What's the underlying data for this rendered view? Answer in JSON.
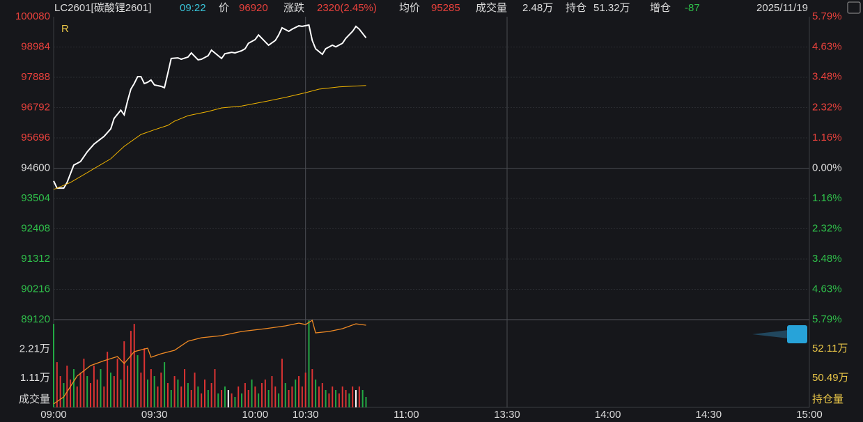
{
  "header": {
    "items": [
      {
        "text": "LC2601[碳酸锂2601]",
        "color": "#dcdcdc"
      },
      {
        "text": "09:22",
        "color": "#39c4d8"
      },
      {
        "text": "价",
        "color": "#dcdcdc"
      },
      {
        "text": "96920",
        "color": "#e8413c"
      },
      {
        "text": "涨跌",
        "color": "#dcdcdc"
      },
      {
        "text": "2320(2.45%)",
        "color": "#e8413c"
      },
      {
        "text": "均价",
        "color": "#dcdcdc"
      },
      {
        "text": "95285",
        "color": "#e8413c"
      },
      {
        "text": "成交量",
        "color": "#dcdcdc"
      },
      {
        "text": "2.48万",
        "color": "#dcdcdc"
      },
      {
        "text": "持仓",
        "color": "#dcdcdc"
      },
      {
        "text": "51.32万",
        "color": "#dcdcdc"
      },
      {
        "text": "增仓",
        "color": "#dcdcdc"
      },
      {
        "text": "-87",
        "color": "#2fbf4a"
      }
    ],
    "date": "2025/11/19"
  },
  "chart_data": [
    {
      "type": "line",
      "annotation": "R",
      "up_color": "#e8413c",
      "down_color": "#2fbf4a",
      "flat_color": "#dcdcdc",
      "xlim": [
        0,
        225
      ],
      "xticks": [
        {
          "value": 0,
          "label": "09:00"
        },
        {
          "value": 30,
          "label": "09:30"
        },
        {
          "value": 60,
          "label": "10:00"
        },
        {
          "value": 75,
          "label": "10:30"
        },
        {
          "value": 105,
          "label": "11:00"
        },
        {
          "value": 135,
          "label": "13:30"
        },
        {
          "value": 165,
          "label": "14:00"
        },
        {
          "value": 195,
          "label": "14:30"
        },
        {
          "value": 225,
          "label": "15:00"
        }
      ],
      "ylim": [
        89120,
        100080
      ],
      "yticks": [
        100080,
        98984,
        97888,
        96792,
        95696,
        94600,
        93504,
        92408,
        91312,
        90216,
        89120
      ],
      "y2lim": [
        -5.79,
        5.79
      ],
      "y2ticks": [
        {
          "value": 5.79,
          "label": "5.79%"
        },
        {
          "value": 4.63,
          "label": "4.63%"
        },
        {
          "value": 3.48,
          "label": "3.48%"
        },
        {
          "value": 2.32,
          "label": "2.32%"
        },
        {
          "value": 1.16,
          "label": "1.16%"
        },
        {
          "value": 0,
          "label": "0.00%"
        },
        {
          "value": -1.16,
          "label": "1.16%"
        },
        {
          "value": -2.32,
          "label": "2.32%"
        },
        {
          "value": -3.48,
          "label": "3.48%"
        },
        {
          "value": -4.63,
          "label": "4.63%"
        },
        {
          "value": -5.79,
          "label": "5.79%"
        }
      ],
      "series": [
        {
          "color": "#ffffff",
          "x": [
            0,
            1,
            3,
            4,
            6,
            8,
            10,
            12,
            15,
            17,
            18,
            20,
            21,
            22,
            23,
            24,
            25,
            26,
            27,
            28,
            29,
            30,
            32,
            33,
            34,
            35,
            37,
            38,
            40,
            41,
            43,
            44,
            46,
            47,
            49,
            50,
            51,
            53,
            54,
            56,
            57,
            58,
            60,
            61,
            63,
            64,
            66,
            67,
            68,
            70,
            71,
            73,
            74,
            76,
            77,
            78,
            80,
            81,
            83,
            84,
            86,
            87,
            89,
            90,
            91,
            93
          ],
          "values": [
            94140,
            93880,
            93880,
            94080,
            94710,
            94840,
            95190,
            95470,
            95750,
            96020,
            96400,
            96700,
            96530,
            97030,
            97460,
            97660,
            97910,
            97910,
            97660,
            97710,
            97790,
            97610,
            97560,
            97510,
            98040,
            98570,
            98590,
            98540,
            98620,
            98770,
            98520,
            98540,
            98670,
            98870,
            98670,
            98570,
            98740,
            98790,
            98770,
            98850,
            98920,
            99120,
            99250,
            99420,
            99170,
            99050,
            99220,
            99420,
            99680,
            99550,
            99630,
            99750,
            99730,
            99780,
            99220,
            98920,
            98720,
            98920,
            99050,
            98990,
            99120,
            99300,
            99550,
            99730,
            99630,
            99320
          ]
        },
        {
          "color": "#f0b400",
          "x": [
            0,
            5,
            11,
            17,
            21,
            26,
            30,
            34,
            36,
            40,
            46,
            50,
            56,
            63,
            69,
            75,
            79,
            85,
            93
          ],
          "values": [
            93830,
            94080,
            94510,
            94940,
            95390,
            95820,
            95990,
            96150,
            96300,
            96500,
            96650,
            96780,
            96850,
            97010,
            97160,
            97330,
            97460,
            97540,
            97590
          ]
        }
      ]
    },
    {
      "type": "bar",
      "ylabel": "成交量",
      "y2label": "持仓量",
      "xlim": [
        0,
        225
      ],
      "ylim": [
        0,
        33300
      ],
      "yticks": [
        {
          "value": 11100,
          "label": "1.11万"
        },
        {
          "value": 22100,
          "label": "2.21万"
        }
      ],
      "y2lim": [
        488700,
        537300
      ],
      "y2ticks": [
        {
          "value": 504900,
          "label": "50.49万"
        },
        {
          "value": 521100,
          "label": "52.11万"
        }
      ],
      "x": [
        0,
        1,
        2,
        3,
        4,
        5,
        6,
        7,
        8,
        9,
        10,
        11,
        12,
        13,
        14,
        15,
        16,
        17,
        18,
        19,
        20,
        21,
        22,
        23,
        24,
        25,
        26,
        27,
        28,
        29,
        30,
        31,
        32,
        33,
        34,
        35,
        36,
        37,
        38,
        39,
        40,
        41,
        42,
        43,
        44,
        45,
        46,
        47,
        48,
        49,
        50,
        51,
        52,
        53,
        54,
        55,
        56,
        57,
        58,
        59,
        60,
        61,
        62,
        63,
        64,
        65,
        66,
        67,
        68,
        69,
        70,
        71,
        72,
        73,
        74,
        75,
        76,
        77,
        78,
        79,
        80,
        81,
        82,
        83,
        84,
        85,
        86,
        87,
        88,
        89,
        90,
        91,
        92,
        93
      ],
      "values": [
        31680,
        17160,
        11880,
        9240,
        15840,
        10560,
        14520,
        7920,
        13200,
        18480,
        11880,
        9240,
        15840,
        10560,
        14520,
        7920,
        21120,
        13200,
        11880,
        18480,
        10560,
        25080,
        15840,
        29040,
        31680,
        19800,
        13200,
        22440,
        10560,
        14520,
        11880,
        7920,
        13200,
        17160,
        9240,
        6600,
        11880,
        10560,
        7920,
        14520,
        9240,
        6600,
        13200,
        7920,
        5280,
        10560,
        6600,
        9240,
        14520,
        5280,
        6600,
        7920,
        6600,
        5280,
        3960,
        7920,
        5280,
        9240,
        6600,
        10560,
        7920,
        5280,
        9240,
        10560,
        6600,
        11880,
        7920,
        5280,
        18480,
        9240,
        6600,
        7920,
        10560,
        11880,
        7920,
        13200,
        33000,
        14520,
        10560,
        7920,
        9240,
        6600,
        5280,
        7920,
        6600,
        5280,
        7920,
        6600,
        5280,
        7920,
        6600,
        7920,
        6600,
        3960
      ],
      "colors": [
        "#2a4",
        "#d33",
        "#d33",
        "#2a4",
        "#d33",
        "#d33",
        "#2a4",
        "#d33",
        "#d33",
        "#d33",
        "#2a4",
        "#d33",
        "#d33",
        "#d33",
        "#2a4",
        "#d33",
        "#d33",
        "#2a4",
        "#d33",
        "#d33",
        "#2a4",
        "#d33",
        "#d33",
        "#d33",
        "#d33",
        "#2a4",
        "#d33",
        "#d33",
        "#2a4",
        "#d33",
        "#2a4",
        "#d33",
        "#d33",
        "#2a4",
        "#d33",
        "#2a4",
        "#d33",
        "#2a4",
        "#d33",
        "#d33",
        "#2a4",
        "#d33",
        "#d33",
        "#2a4",
        "#d33",
        "#d33",
        "#2a4",
        "#d33",
        "#d33",
        "#2a4",
        "#d33",
        "#2a4",
        "#fff",
        "#d33",
        "#2a4",
        "#d33",
        "#2a4",
        "#d33",
        "#d33",
        "#2a4",
        "#d33",
        "#2a4",
        "#d33",
        "#d33",
        "#2a4",
        "#d33",
        "#d33",
        "#2a4",
        "#d33",
        "#2a4",
        "#d33",
        "#d33",
        "#2a4",
        "#d33",
        "#d33",
        "#d33",
        "#2a4",
        "#d33",
        "#2a4",
        "#d33",
        "#d33",
        "#2a4",
        "#d33",
        "#d33",
        "#2a4",
        "#d33",
        "#d33",
        "#d33",
        "#2a4",
        "#d33",
        "#fff",
        "#d33",
        "#2a4",
        "#2a4"
      ],
      "series": [
        {
          "axis": "y2",
          "color": "#f08a24",
          "x": [
            0,
            3,
            7,
            11,
            15,
            19,
            21,
            24,
            28,
            29,
            32,
            36,
            40,
            44,
            50,
            56,
            63,
            69,
            73,
            75,
            77,
            78,
            82,
            86,
            90,
            93
          ],
          "values": [
            490630,
            494490,
            506060,
            511840,
            514540,
            516860,
            513000,
            519560,
            521480,
            516470,
            518400,
            520330,
            525340,
            527270,
            528430,
            530740,
            532280,
            533830,
            535370,
            534600,
            536910,
            529970,
            530740,
            532280,
            535000,
            534210
          ]
        }
      ]
    }
  ]
}
